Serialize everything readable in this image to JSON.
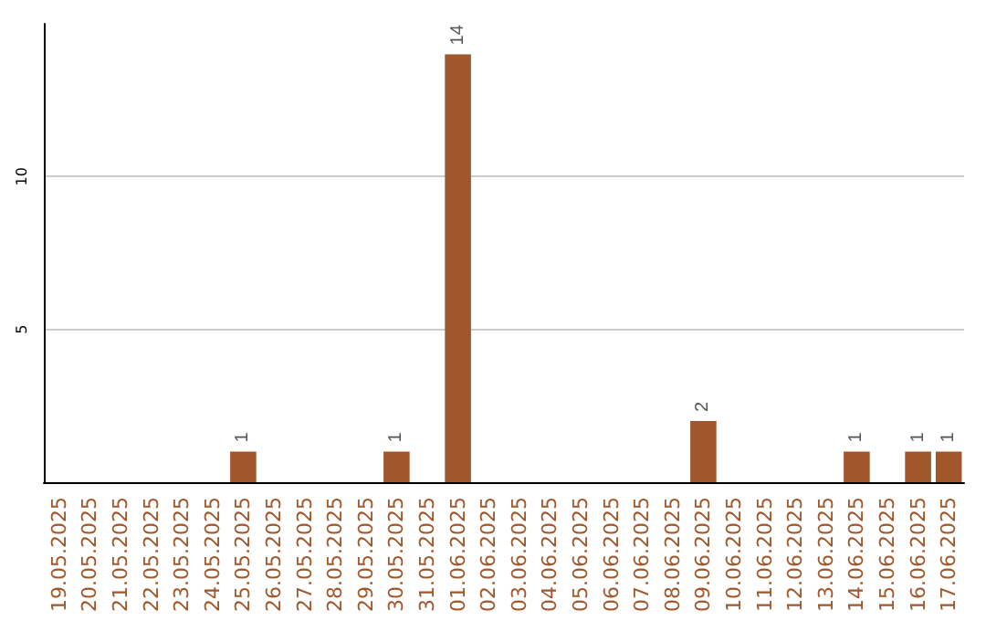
{
  "chart_data": {
    "type": "bar",
    "categories": [
      "19.05.2025",
      "20.05.2025",
      "21.05.2025",
      "22.05.2025",
      "23.05.2025",
      "24.05.2025",
      "25.05.2025",
      "26.05.2025",
      "27.05.2025",
      "28.05.2025",
      "29.05.2025",
      "30.05.2025",
      "31.05.2025",
      "01.06.2025",
      "02.06.2025",
      "03.06.2025",
      "04.06.2025",
      "05.06.2025",
      "06.06.2025",
      "07.06.2025",
      "08.06.2025",
      "09.06.2025",
      "10.06.2025",
      "11.06.2025",
      "12.06.2025",
      "13.06.2025",
      "14.06.2025",
      "15.06.2025",
      "16.06.2025",
      "17.06.2025"
    ],
    "values": [
      0,
      0,
      0,
      0,
      0,
      0,
      1,
      0,
      0,
      0,
      0,
      1,
      0,
      14,
      0,
      0,
      0,
      0,
      0,
      0,
      0,
      2,
      0,
      0,
      0,
      0,
      1,
      0,
      1,
      1
    ],
    "value_labels": [
      null,
      null,
      null,
      null,
      null,
      null,
      "1",
      null,
      null,
      null,
      null,
      "1",
      null,
      "14",
      null,
      null,
      null,
      null,
      null,
      null,
      null,
      "2",
      null,
      null,
      null,
      null,
      "1",
      null,
      "1",
      "1"
    ],
    "color": "#a0572b",
    "ylim": [
      0,
      15
    ],
    "yticks": [
      5,
      10
    ],
    "grid": "y"
  }
}
